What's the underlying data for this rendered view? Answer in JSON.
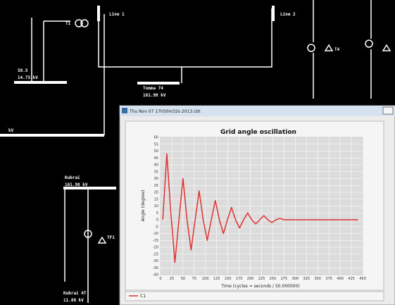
{
  "labels": [
    "Line 1",
    "Line 2",
    "T1",
    "T4",
    "58.5",
    "14.75 kV",
    "Tomma 74",
    "161.98 kV",
    "kV",
    "Kubrai",
    "161.98 kV",
    "TF1",
    "Kubrai 4T",
    "11.88 kV"
  ],
  "window": {
    "title": "Thu Nov 07 17h50m32s 2013.cbt"
  },
  "chart_data": {
    "type": "line",
    "title": "Grid angle oscillation",
    "x_label": "Time (cycles = seconds / 50.000000)",
    "y_label": "Angle (degree)",
    "xlim": [
      0,
      450
    ],
    "xticks": [
      0,
      25,
      50,
      75,
      100,
      125,
      150,
      175,
      200,
      225,
      250,
      275,
      300,
      325,
      350,
      375,
      400,
      425,
      450
    ],
    "ylim": [
      -40,
      60
    ],
    "yticks": [
      -40,
      -35,
      -30,
      -25,
      -20,
      -15,
      -10,
      -5,
      0,
      5,
      10,
      15,
      20,
      25,
      30,
      35,
      40,
      45,
      50,
      55,
      60
    ],
    "grid": true,
    "x": [
      5,
      14,
      23,
      32,
      41,
      50,
      59,
      68,
      77,
      86,
      95,
      104,
      113,
      122,
      131,
      140,
      149,
      158,
      167,
      176,
      185,
      194,
      203,
      212,
      221,
      230,
      239,
      248,
      257,
      266,
      275,
      300,
      350,
      400,
      440
    ],
    "series": [
      {
        "name": "C1",
        "color": "#e03030",
        "values": [
          0,
          48,
          5,
          -31,
          0,
          30,
          0,
          -22,
          0,
          21,
          0,
          -15,
          0,
          14,
          0,
          -10,
          0,
          9,
          0,
          -6,
          0,
          5,
          0,
          -3,
          0,
          3,
          0,
          -2,
          0,
          1,
          0,
          0,
          0,
          0,
          0
        ]
      }
    ]
  }
}
